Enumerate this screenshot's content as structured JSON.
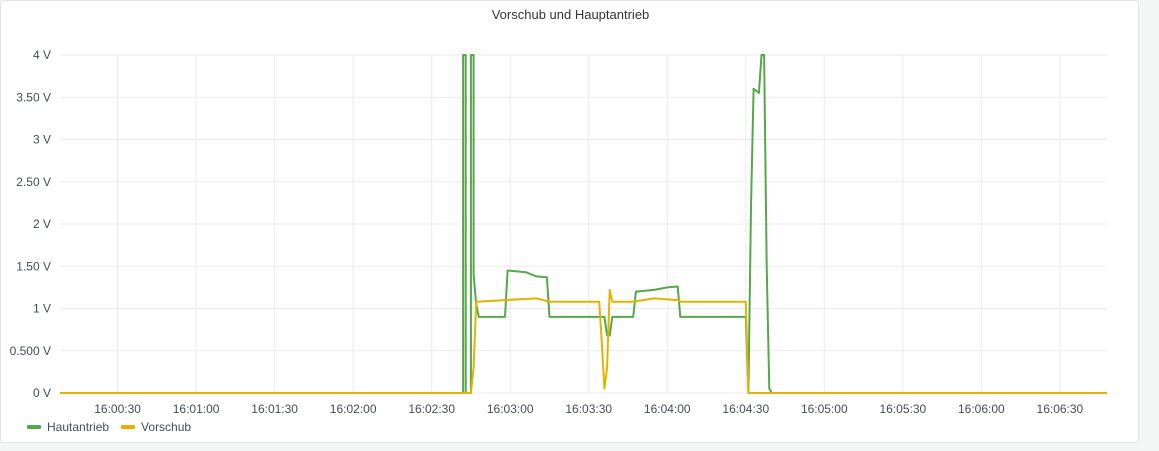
{
  "panel": {
    "title": "Vorschub und Hauptantrieb"
  },
  "colors": {
    "Hautantrieb": "#56a64b",
    "Vorschub": "#e0b400",
    "grid": "#ebebeb"
  },
  "chart_data": {
    "type": "line",
    "title": "Vorschub und Hauptantrieb",
    "xlabel": "",
    "ylabel": "",
    "x_range": [
      "16:00:08",
      "16:06:48"
    ],
    "ylim": [
      0,
      4
    ],
    "y_ticks": [
      {
        "value": 0,
        "label": "0 V"
      },
      {
        "value": 0.5,
        "label": "0.500 V"
      },
      {
        "value": 1,
        "label": "1 V"
      },
      {
        "value": 1.5,
        "label": "1.50 V"
      },
      {
        "value": 2,
        "label": "2 V"
      },
      {
        "value": 2.5,
        "label": "2.50 V"
      },
      {
        "value": 3,
        "label": "3 V"
      },
      {
        "value": 3.5,
        "label": "3.50 V"
      },
      {
        "value": 4,
        "label": "4 V"
      }
    ],
    "x_ticks": [
      "16:00:30",
      "16:01:00",
      "16:01:30",
      "16:02:00",
      "16:02:30",
      "16:03:00",
      "16:03:30",
      "16:04:00",
      "16:04:30",
      "16:05:00",
      "16:05:30",
      "16:06:00",
      "16:06:30"
    ],
    "grid": true,
    "legend_position": "bottom-left",
    "series": [
      {
        "name": "Hautantrieb",
        "color": "#56a64b",
        "points": [
          [
            "16:00:08",
            0
          ],
          [
            "16:02:42",
            0
          ],
          [
            "16:02:42",
            4
          ],
          [
            "16:02:43",
            4
          ],
          [
            "16:02:43",
            0
          ],
          [
            "16:02:45",
            0
          ],
          [
            "16:02:45",
            4
          ],
          [
            "16:02:46",
            4
          ],
          [
            "16:02:46",
            1.4
          ],
          [
            "16:02:47",
            1.05
          ],
          [
            "16:02:48",
            0.9
          ],
          [
            "16:02:58",
            0.9
          ],
          [
            "16:02:59",
            1.45
          ],
          [
            "16:03:06",
            1.43
          ],
          [
            "16:03:10",
            1.38
          ],
          [
            "16:03:14",
            1.37
          ],
          [
            "16:03:15",
            0.9
          ],
          [
            "16:03:36",
            0.9
          ],
          [
            "16:03:37",
            0.68
          ],
          [
            "16:03:38",
            0.68
          ],
          [
            "16:03:39",
            0.9
          ],
          [
            "16:03:47",
            0.9
          ],
          [
            "16:03:48",
            1.2
          ],
          [
            "16:03:55",
            1.22
          ],
          [
            "16:04:00",
            1.25
          ],
          [
            "16:04:04",
            1.26
          ],
          [
            "16:04:05",
            0.9
          ],
          [
            "16:04:30",
            0.9
          ],
          [
            "16:04:31",
            0.0
          ],
          [
            "16:04:32",
            2.2
          ],
          [
            "16:04:33",
            3.6
          ],
          [
            "16:04:35",
            3.55
          ],
          [
            "16:04:36",
            4
          ],
          [
            "16:04:37",
            4
          ],
          [
            "16:04:38",
            1.5
          ],
          [
            "16:04:39",
            0.05
          ],
          [
            "16:04:40",
            0
          ],
          [
            "16:06:48",
            0
          ]
        ]
      },
      {
        "name": "Vorschub",
        "color": "#e0b400",
        "points": [
          [
            "16:00:08",
            0
          ],
          [
            "16:02:45",
            0
          ],
          [
            "16:02:46",
            0.3
          ],
          [
            "16:02:47",
            1.08
          ],
          [
            "16:02:58",
            1.1
          ],
          [
            "16:03:10",
            1.12
          ],
          [
            "16:03:15",
            1.08
          ],
          [
            "16:03:34",
            1.08
          ],
          [
            "16:03:35",
            0.6
          ],
          [
            "16:03:36",
            0.05
          ],
          [
            "16:03:37",
            0.3
          ],
          [
            "16:03:38",
            1.22
          ],
          [
            "16:03:39",
            1.08
          ],
          [
            "16:03:47",
            1.08
          ],
          [
            "16:03:55",
            1.12
          ],
          [
            "16:04:04",
            1.1
          ],
          [
            "16:04:05",
            1.08
          ],
          [
            "16:04:30",
            1.08
          ],
          [
            "16:04:31",
            0
          ],
          [
            "16:06:48",
            0
          ]
        ]
      }
    ]
  },
  "legend": [
    {
      "label": "Hautantrieb",
      "color": "#56a64b"
    },
    {
      "label": "Vorschub",
      "color": "#e0b400"
    }
  ]
}
